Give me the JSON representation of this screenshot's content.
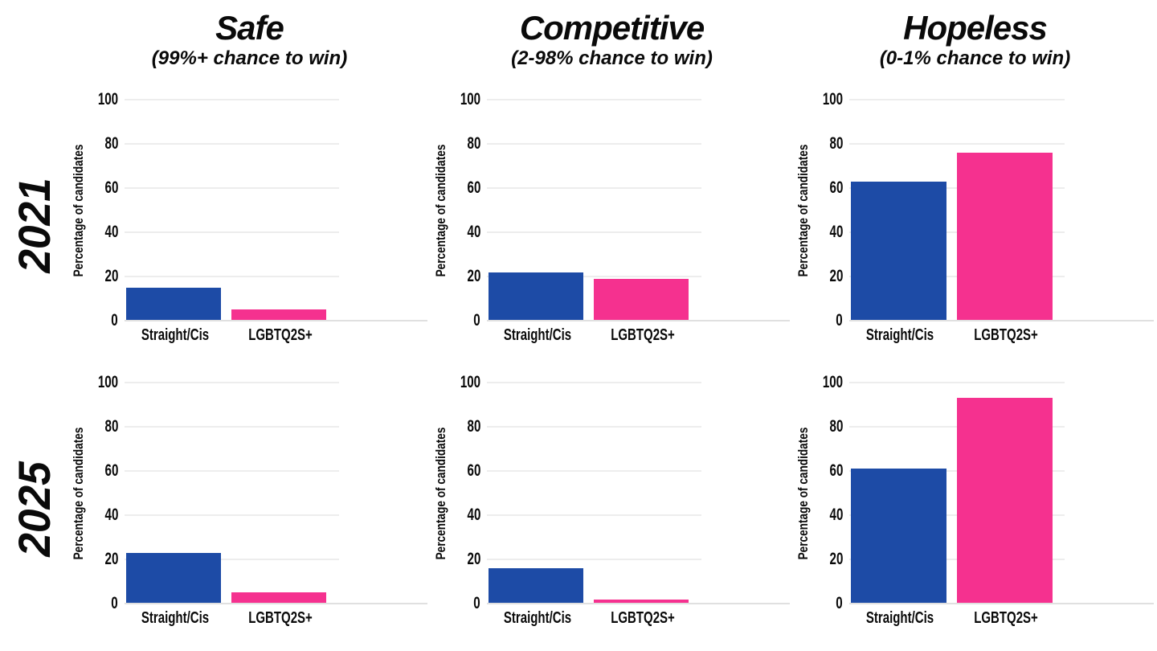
{
  "chart_data": {
    "type": "bar",
    "layout": "small-multiples 2 rows x 3 columns",
    "ylabel": "Percentage of candidates",
    "ylim": [
      0,
      100
    ],
    "yticks": [
      0,
      20,
      40,
      60,
      80,
      100
    ],
    "grid": true,
    "legend_position": "none",
    "categories": [
      "Straight/Cis",
      "LGBTQ2S+"
    ],
    "series_colors": [
      "#1d4ba6",
      "#f5318f"
    ],
    "rows": [
      {
        "label": "2021"
      },
      {
        "label": "2025"
      }
    ],
    "columns": [
      {
        "title": "Safe",
        "subtitle": "(99%+ chance to win)"
      },
      {
        "title": "Competitive",
        "subtitle": "(2-98% chance to win)"
      },
      {
        "title": "Hopeless",
        "subtitle": "(0-1% chance to win)"
      }
    ],
    "cells": [
      {
        "row": "2021",
        "column": "Safe",
        "values": [
          15,
          5
        ]
      },
      {
        "row": "2021",
        "column": "Competitive",
        "values": [
          22,
          19
        ]
      },
      {
        "row": "2021",
        "column": "Hopeless",
        "values": [
          63,
          76
        ]
      },
      {
        "row": "2025",
        "column": "Safe",
        "values": [
          23,
          5
        ]
      },
      {
        "row": "2025",
        "column": "Competitive",
        "values": [
          16,
          2
        ]
      },
      {
        "row": "2025",
        "column": "Hopeless",
        "values": [
          61,
          93
        ]
      }
    ],
    "colors": {
      "straight_cis_blue": "#1d4ba6",
      "lgbtq2s_pink": "#f5318f",
      "gridline": "#ededed",
      "text": "#0a0a0a",
      "background": "#ffffff"
    }
  }
}
